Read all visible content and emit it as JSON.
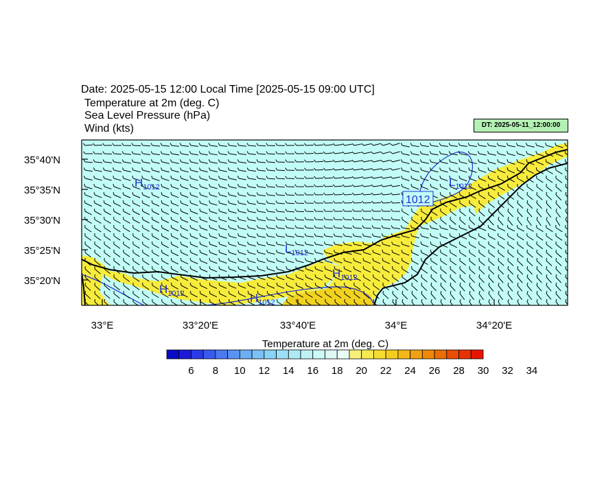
{
  "header": {
    "date_line": "Date: 2025-05-15  12:00 Local Time [2025-05-15  09:00 UTC]",
    "var1": "Temperature at 2m   (deg. C)",
    "var2": "Sea Level Pressure   (hPa)",
    "var3": "Wind   (kts)",
    "dt_badge": "DT: 2025-05-11_12:00:00"
  },
  "map": {
    "lon_ticks": [
      "33°E",
      "33°20'E",
      "33°40'E",
      "34°E",
      "34°20'E"
    ],
    "lat_ticks": [
      "35°40'N",
      "35°35'N",
      "35°30'N",
      "35°25'N",
      "35°20'N"
    ],
    "sea_color": "#c2fcf6",
    "land_color": "#f7ec3c",
    "warm_land_color": "#f1d21f",
    "isobar_color": "#1f2fd8",
    "pressure_centers": [
      {
        "type": "H",
        "value": "1012"
      },
      {
        "type": "L",
        "value": "1012"
      },
      {
        "type": "H",
        "value": "1012"
      },
      {
        "type": "H",
        "value": "1012"
      },
      {
        "type": "H",
        "value": "1012"
      },
      {
        "type": "L",
        "value": "1012"
      }
    ],
    "contour_label": "1012"
  },
  "colorbar": {
    "title": "Temperature at 2m  (deg. C)",
    "labels": [
      "6",
      "8",
      "10",
      "12",
      "14",
      "16",
      "18",
      "20",
      "22",
      "24",
      "26",
      "28",
      "30",
      "32",
      "34"
    ],
    "colors": [
      "#0a0ac8",
      "#1a1ad8",
      "#2a3ae6",
      "#3a5aee",
      "#4a7af0",
      "#5a92f2",
      "#6aaef4",
      "#7ac2f6",
      "#8ad2f6",
      "#9ce0f6",
      "#aeeaf6",
      "#bef2f6",
      "#cefaf6",
      "#def8f4",
      "#eafcf8",
      "#f6f07a",
      "#f6e850",
      "#f6dc30",
      "#f4cc20",
      "#f2b818",
      "#f0a010",
      "#ee8808",
      "#ec6c06",
      "#ea4e04",
      "#e83202",
      "#e81402"
    ]
  }
}
